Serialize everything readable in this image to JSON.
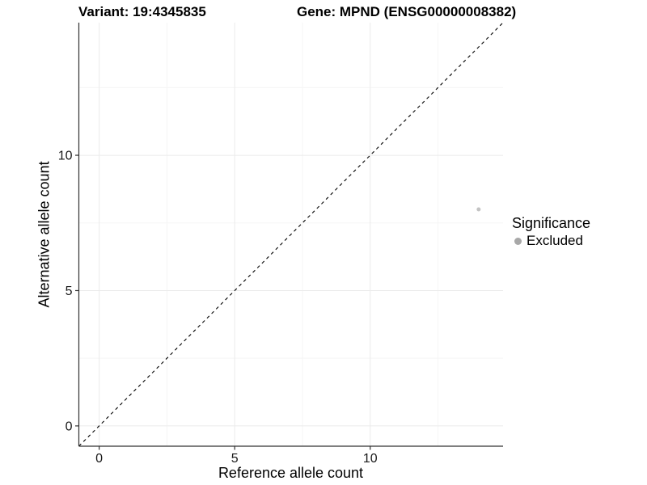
{
  "chart_data": {
    "type": "scatter",
    "title_left": "Variant: 19:4345835",
    "title_right": "Gene: MPND (ENSG00000008382)",
    "xlabel": "Reference allele count",
    "ylabel": "Alternative allele count",
    "xlim": [
      -0.75,
      14.9
    ],
    "ylim": [
      -0.75,
      14.9
    ],
    "xticks": [
      0,
      5,
      10
    ],
    "yticks": [
      0,
      5,
      10
    ],
    "xtick_labels": [
      "0",
      "5",
      "10"
    ],
    "ytick_labels": [
      "0",
      "5",
      "10"
    ],
    "minor_ticks": [
      2.5,
      7.5,
      12.5
    ],
    "grid": "major+minor",
    "reference_line": {
      "type": "identity y=x",
      "style": "dashed",
      "color": "#000000"
    },
    "series": [
      {
        "name": "Excluded",
        "color": "#c3c3c3",
        "points": [
          {
            "x": 14,
            "y": 8
          }
        ]
      }
    ],
    "legend": {
      "title": "Significance",
      "position": "right",
      "entries": [
        {
          "label": "Excluded",
          "color": "#a8a8a8"
        }
      ]
    },
    "colors": {
      "axis_line": "#333333",
      "tick_mark": "#333333",
      "tick_label": "#1a1a1a",
      "grid_major": "#ebebeb",
      "grid_minor": "#f5f5f5",
      "background": "#ffffff"
    }
  }
}
